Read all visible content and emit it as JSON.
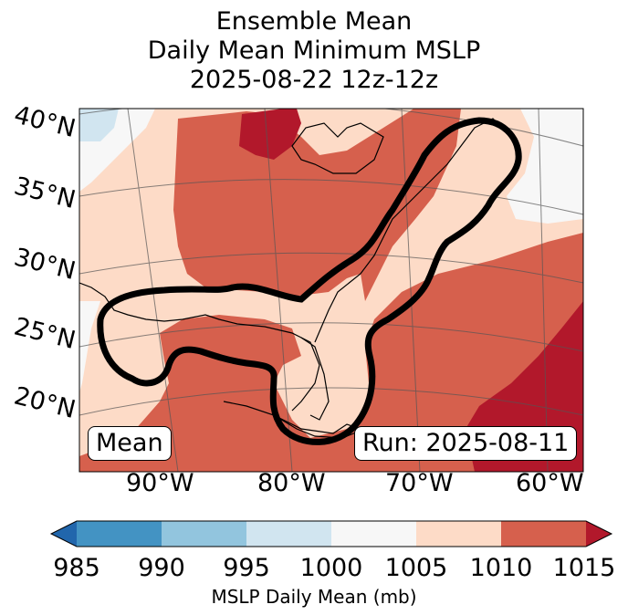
{
  "title_lines": [
    "Ensemble Mean",
    "Daily Mean Minimum MSLP",
    "2025-08-22 12z-12z"
  ],
  "lat_labels": [
    "40°N",
    "35°N",
    "30°N",
    "25°N",
    "20°N"
  ],
  "lon_labels": [
    "90°W",
    "80°W",
    "70°W",
    "60°W"
  ],
  "badge_left": "Mean",
  "badge_right": "Run: 2025-08-11",
  "colorbar": {
    "ticks": [
      "985",
      "990",
      "995",
      "1000",
      "1005",
      "1010",
      "1015"
    ],
    "label": "MSLP Daily Mean (mb)",
    "colors": [
      "#2166ac",
      "#4393c3",
      "#92c5de",
      "#d1e5f0",
      "#f7f7f7",
      "#fddbc7",
      "#d6604d",
      "#b2182b"
    ]
  },
  "legend_colors": {
    "c995_1000": "#d1e5f0",
    "c1000_1005": "#f7f7f7",
    "c1005_1010": "#fddbc7",
    "c1010_1015": "#d6604d",
    "c1015_plus": "#b2182b"
  }
}
